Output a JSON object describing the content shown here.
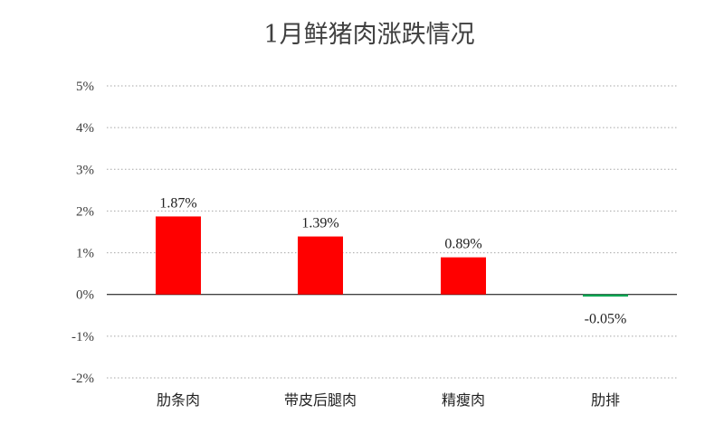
{
  "chart_data": {
    "type": "bar",
    "title": "1月鲜猪肉涨跌情况",
    "categories": [
      "肋条肉",
      "带皮后腿肉",
      "精瘦肉",
      "肋排"
    ],
    "values": [
      1.87,
      1.39,
      0.89,
      -0.05
    ],
    "data_labels": [
      "1.87%",
      "1.39%",
      "0.89%",
      "-0.05%"
    ],
    "y_ticks": [
      5,
      4,
      3,
      2,
      1,
      0,
      -1,
      -2
    ],
    "y_tick_labels": [
      "5%",
      "4%",
      "3%",
      "2%",
      "1%",
      "0%",
      "-1%",
      "-2%"
    ],
    "ylim": [
      -2,
      5
    ],
    "xlabel": "",
    "ylabel": "",
    "grid": true,
    "legend": "none",
    "colors": {
      "positive": "#ff0000",
      "negative": "#00a651"
    }
  }
}
